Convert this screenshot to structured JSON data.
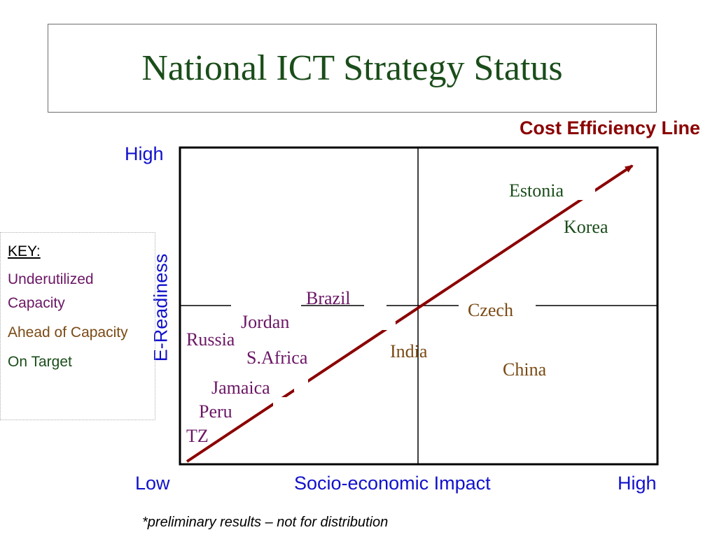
{
  "title": "National ICT Strategy Status",
  "cost_line_label": "Cost Efficiency Line",
  "axes": {
    "y_high": "High",
    "y_title": "E-Readiness",
    "x_low": "Low",
    "x_title": "Socio-economic Impact",
    "x_high": "High"
  },
  "key": {
    "title": "KEY:",
    "items": [
      {
        "label": "Underutilized Capacity",
        "color": "#6b1565"
      },
      {
        "label": "Ahead of Capacity",
        "color": "#7a4a14"
      },
      {
        "label": "On Target",
        "color": "#1a4d1a"
      }
    ]
  },
  "countries": [
    {
      "name": "Estonia",
      "category": "On Target"
    },
    {
      "name": "Korea",
      "category": "On Target"
    },
    {
      "name": "Brazil",
      "category": "Underutilized Capacity"
    },
    {
      "name": "Jordan",
      "category": "Underutilized Capacity"
    },
    {
      "name": "Russia",
      "category": "Underutilized Capacity"
    },
    {
      "name": "S.Africa",
      "category": "Underutilized Capacity"
    },
    {
      "name": "Jamaica",
      "category": "Underutilized Capacity"
    },
    {
      "name": "Peru",
      "category": "Underutilized Capacity"
    },
    {
      "name": "TZ",
      "category": "Underutilized Capacity"
    },
    {
      "name": "Czech",
      "category": "Ahead of Capacity"
    },
    {
      "name": "India",
      "category": "Ahead of Capacity"
    },
    {
      "name": "China",
      "category": "Ahead of Capacity"
    }
  ],
  "footnote": "*preliminary results – not for distribution",
  "colors": {
    "title": "#1a4d1a",
    "cost_line": "#8b0000",
    "axis_text": "#1111cc"
  }
}
